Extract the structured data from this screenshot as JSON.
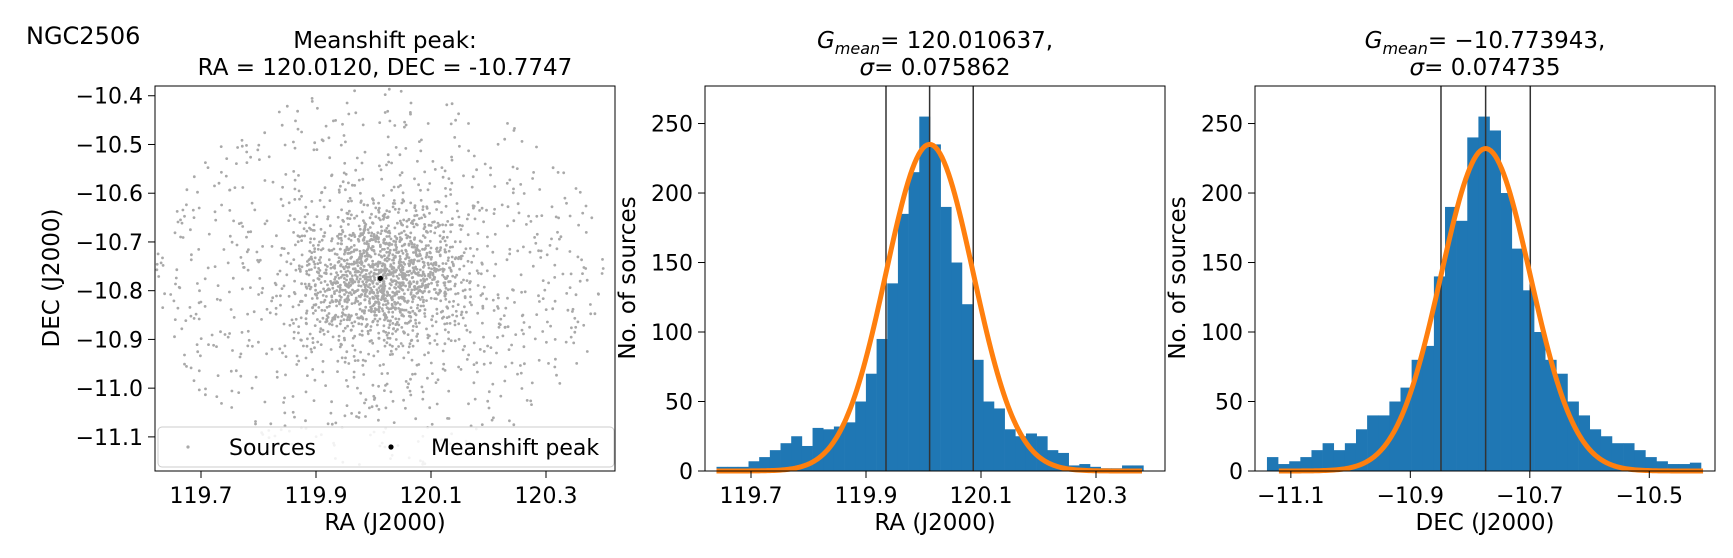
{
  "figure_label": "NGC2506",
  "chart_data": [
    {
      "type": "scatter",
      "title_lines": [
        "Meanshift peak:",
        "RA = 120.0120, DEC = -10.7747"
      ],
      "xlabel": "RA (J2000)",
      "ylabel": "DEC (J2000)",
      "xlim": [
        119.62,
        120.42
      ],
      "ylim": [
        -11.17,
        -10.38
      ],
      "xticks": [
        119.7,
        119.9,
        120.1,
        120.3
      ],
      "xtick_labels": [
        "119.7",
        "119.9",
        "120.1",
        "120.3"
      ],
      "yticks": [
        -10.4,
        -10.5,
        -10.6,
        -10.7,
        -10.8,
        -10.9,
        -11.0,
        -11.1
      ],
      "ytick_labels": [
        "−10.4",
        "−10.5",
        "−10.6",
        "−10.7",
        "−10.8",
        "−10.9",
        "−11.0",
        "−11.1"
      ],
      "sources": {
        "name": "Sources",
        "color": "#a9a9a9",
        "field_center": [
          120.012,
          -10.7747
        ],
        "field_radius_deg": 0.39,
        "core_sigma_deg": 0.075,
        "point_count": 2300
      },
      "peak": {
        "name": "Meanshift peak",
        "x": 120.012,
        "y": -10.7747,
        "color": "#000000"
      },
      "legend": {
        "position": "lower-center",
        "entries": [
          "Sources",
          "Meanshift peak"
        ]
      },
      "grid": false
    },
    {
      "type": "bar",
      "title_math": {
        "base": "G",
        "sub": "mean",
        "value": "= 120.010637,"
      },
      "title_sigma": {
        "symbol": "σ",
        "value": "= 0.075862"
      },
      "xlabel": "RA (J2000)",
      "ylabel": "No. of sources",
      "xlim": [
        119.62,
        120.42
      ],
      "ylim": [
        0,
        277
      ],
      "xticks": [
        119.7,
        119.9,
        120.1,
        120.3
      ],
      "xtick_labels": [
        "119.7",
        "119.9",
        "120.1",
        "120.3"
      ],
      "yticks": [
        0,
        50,
        100,
        150,
        200,
        250
      ],
      "ytick_labels": [
        "0",
        "50",
        "100",
        "150",
        "200",
        "250"
      ],
      "bin_start": 119.64,
      "bin_width": 0.01856,
      "counts": [
        3,
        3,
        3,
        7,
        10,
        15,
        20,
        25,
        18,
        31,
        30,
        32,
        35,
        50,
        70,
        95,
        135,
        185,
        215,
        255,
        235,
        190,
        150,
        120,
        80,
        50,
        45,
        30,
        25,
        27,
        25,
        15,
        13,
        4,
        5,
        3,
        2,
        2,
        4,
        4
      ],
      "bar_color": "#1f77b4",
      "gaussian": {
        "mean": 120.010637,
        "sigma": 0.075862,
        "amplitude": 235,
        "color": "#ff7f0e",
        "x_range": [
          119.64,
          120.38
        ]
      },
      "vlines": [
        119.934775,
        120.010637,
        120.086499
      ],
      "grid": false
    },
    {
      "type": "bar",
      "title_math": {
        "base": "G",
        "sub": "mean",
        "value": "= −10.773943,"
      },
      "title_sigma": {
        "symbol": "σ",
        "value": "= 0.074735"
      },
      "xlabel": "DEC (J2000)",
      "ylabel": "No. of sources",
      "xlim": [
        -11.16,
        -10.39
      ],
      "ylim": [
        0,
        277
      ],
      "xticks": [
        -11.1,
        -10.9,
        -10.7,
        -10.5
      ],
      "xtick_labels": [
        "−11.1",
        "−10.9",
        "−10.7",
        "−10.5"
      ],
      "yticks": [
        0,
        50,
        100,
        150,
        200,
        250
      ],
      "ytick_labels": [
        "0",
        "50",
        "100",
        "150",
        "200",
        "250"
      ],
      "bin_start": -11.14,
      "bin_width": 0.01863,
      "counts": [
        10,
        5,
        7,
        10,
        15,
        20,
        15,
        20,
        30,
        40,
        40,
        50,
        60,
        80,
        90,
        140,
        190,
        180,
        240,
        255,
        245,
        200,
        160,
        130,
        100,
        80,
        70,
        50,
        40,
        30,
        25,
        20,
        20,
        15,
        10,
        7,
        5,
        5,
        6
      ],
      "bar_color": "#1f77b4",
      "gaussian": {
        "mean": -10.773943,
        "sigma": 0.074735,
        "amplitude": 232,
        "color": "#ff7f0e",
        "x_range": [
          -11.12,
          -10.41
        ]
      },
      "vlines": [
        -10.848678,
        -10.773943,
        -10.699208
      ],
      "grid": false
    }
  ]
}
